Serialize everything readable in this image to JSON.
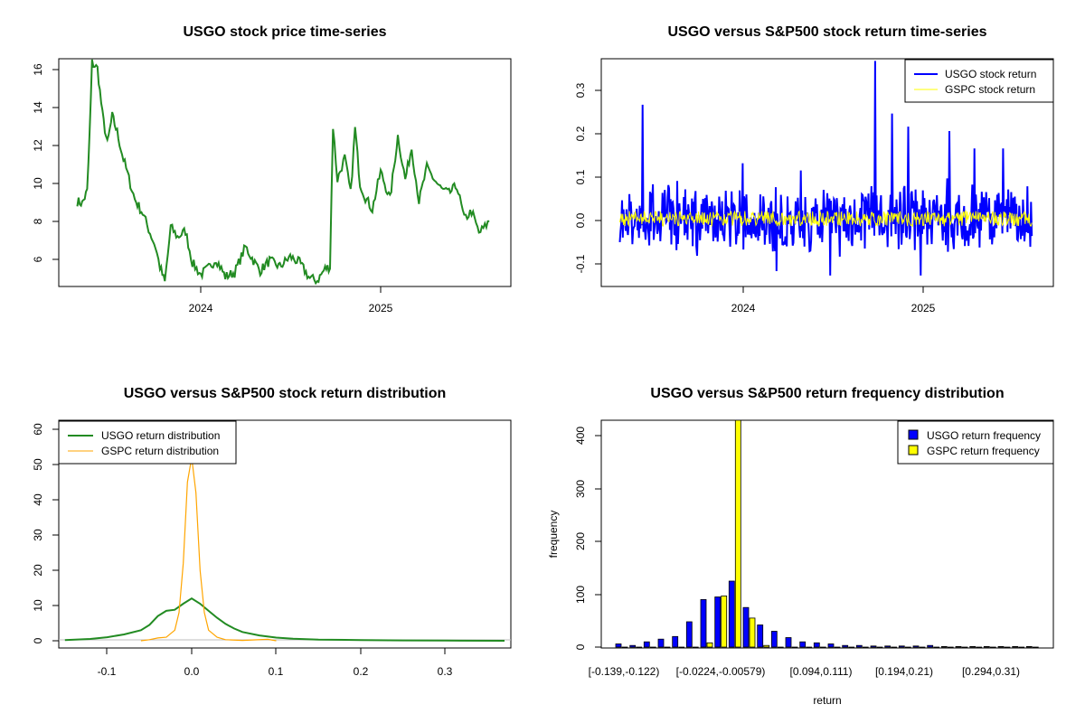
{
  "colors": {
    "usgo_price": "#228b22",
    "usgo_return": "#0000ff",
    "gspc_return": "#ffff00",
    "usgo_density": "#228b22",
    "gspc_density": "#ffa500",
    "usgo_bar": "#0000ff",
    "gspc_bar": "#ffff00"
  },
  "chart_data": [
    {
      "type": "line",
      "title": "USGO stock price time-series",
      "xlabel": "",
      "ylabel": "",
      "x_ticks": [
        "2024",
        "2025"
      ],
      "y_ticks": [
        "6",
        "8",
        "10",
        "12",
        "14",
        "16"
      ],
      "ylim": [
        4.8,
        16.3
      ],
      "grid": false,
      "legend": "none",
      "series": [
        {
          "x": [
            "2023-04-25",
            "2023-05-05",
            "2023-05-15",
            "2023-05-20",
            "2023-05-25",
            "2023-06-05",
            "2023-06-15",
            "2023-06-25",
            "2023-07-05",
            "2023-07-15",
            "2023-07-25",
            "2023-08-05",
            "2023-08-20",
            "2023-09-05",
            "2023-09-20",
            "2023-10-01",
            "2023-10-10",
            "2023-10-20",
            "2023-11-01",
            "2023-11-15",
            "2023-12-01",
            "2023-12-15",
            "2024-01-01",
            "2024-01-20",
            "2024-02-01",
            "2024-02-20",
            "2024-03-10",
            "2024-04-01",
            "2024-04-20",
            "2024-05-01",
            "2024-05-20",
            "2024-06-10",
            "2024-07-01",
            "2024-07-20",
            "2024-08-10",
            "2024-08-25",
            "2024-09-10",
            "2024-09-20",
            "2024-09-26",
            "2024-10-05",
            "2024-10-20",
            "2024-11-01",
            "2024-11-10",
            "2024-11-20",
            "2024-12-01",
            "2024-12-15",
            "2025-01-01",
            "2025-01-20",
            "2025-02-05",
            "2025-02-20",
            "2025-03-05",
            "2025-03-20",
            "2025-04-05",
            "2025-04-20",
            "2025-05-05",
            "2025-05-20",
            "2025-06-05",
            "2025-06-20",
            "2025-07-05",
            "2025-07-20",
            "2025-08-01",
            "2025-08-10"
          ],
          "y": [
            9.1,
            9.0,
            9.6,
            12.5,
            16.1,
            15.8,
            13.5,
            12.0,
            13.4,
            12.6,
            11.5,
            10.5,
            9.2,
            8.5,
            7.5,
            6.8,
            5.8,
            5.0,
            7.8,
            7.3,
            7.6,
            6.0,
            5.4,
            5.8,
            6.2,
            5.3,
            5.5,
            6.8,
            6.0,
            5.6,
            6.1,
            5.8,
            6.3,
            6.0,
            5.2,
            5.1,
            5.7,
            5.8,
            12.9,
            10.2,
            11.3,
            9.5,
            12.8,
            10.0,
            9.3,
            8.7,
            10.6,
            9.2,
            12.4,
            10.2,
            11.8,
            9.1,
            10.8,
            10.2,
            9.7,
            9.5,
            9.9,
            8.2,
            8.6,
            7.5,
            7.8,
            8.1
          ]
        }
      ]
    },
    {
      "type": "line",
      "title": "USGO versus S&P500 stock return time-series",
      "xlabel": "",
      "ylabel": "",
      "x_ticks": [
        "2024",
        "2025"
      ],
      "y_ticks": [
        "-0.1",
        "0.0",
        "0.1",
        "0.2",
        "0.3"
      ],
      "ylim": [
        -0.155,
        0.365
      ],
      "grid": false,
      "legend": "top-right",
      "series": [
        {
          "name": "USGO stock return",
          "note": "daily returns; peaks ≈0.26 (mid-2023), ≈0.36 (Sep 2024), range ≈ -0.14 to 0.36"
        },
        {
          "name": "GSPC stock return",
          "note": "daily returns within ≈ ±0.02"
        }
      ]
    },
    {
      "type": "line",
      "title": "USGO versus S&P500 stock return distribution",
      "xlabel": "",
      "ylabel": "",
      "x_ticks": [
        "-0.1",
        "0.0",
        "0.1",
        "0.2",
        "0.3"
      ],
      "y_ticks": [
        "0",
        "10",
        "20",
        "30",
        "40",
        "50",
        "60"
      ],
      "xlim": [
        -0.155,
        0.375
      ],
      "ylim": [
        -2,
        63
      ],
      "grid": false,
      "legend": "top-left",
      "series": [
        {
          "name": "USGO return distribution",
          "x": [
            -0.15,
            -0.12,
            -0.1,
            -0.08,
            -0.06,
            -0.05,
            -0.04,
            -0.03,
            -0.02,
            -0.01,
            0.0,
            0.01,
            0.02,
            0.03,
            0.04,
            0.05,
            0.06,
            0.08,
            0.1,
            0.12,
            0.15,
            0.2,
            0.25,
            0.3,
            0.37
          ],
          "y": [
            0.2,
            0.5,
            1.0,
            1.8,
            3.0,
            4.5,
            7.0,
            8.5,
            8.8,
            10.5,
            12.0,
            10.5,
            8.5,
            6.5,
            4.8,
            3.5,
            2.5,
            1.5,
            0.9,
            0.6,
            0.3,
            0.2,
            0.1,
            0.05,
            0.0
          ]
        },
        {
          "name": "GSPC return distribution",
          "x": [
            -0.06,
            -0.05,
            -0.04,
            -0.03,
            -0.02,
            -0.015,
            -0.01,
            -0.005,
            0.0,
            0.005,
            0.01,
            0.015,
            0.02,
            0.03,
            0.04,
            0.06,
            0.09,
            0.1
          ],
          "y": [
            0.0,
            0.3,
            0.8,
            1.0,
            3.0,
            8.0,
            22.0,
            45.0,
            52.0,
            42.0,
            20.0,
            8.0,
            3.0,
            1.0,
            0.3,
            0.1,
            0.4,
            0.0
          ]
        }
      ]
    },
    {
      "type": "bar",
      "title": "USGO versus S&P500 return frequency distribution",
      "xlabel": "return",
      "ylabel": "frequency",
      "x_tick_labels": [
        "[-0.139,-0.122)",
        "[-0.0224,-0.00579)",
        "[0.094,0.111)",
        "[0.194,0.21)",
        "[0.294,0.31)"
      ],
      "y_ticks": [
        "0",
        "100",
        "200",
        "300",
        "400"
      ],
      "ylim": [
        0,
        430
      ],
      "grid": false,
      "legend": "top-right",
      "series": [
        {
          "name": "USGO return frequency",
          "values": [
            6,
            3,
            10,
            15,
            20,
            48,
            90,
            95,
            125,
            75,
            42,
            30,
            18,
            10,
            8,
            6,
            3,
            3,
            2,
            2,
            2,
            2,
            3,
            1,
            1,
            1,
            1,
            1,
            1,
            1
          ]
        },
        {
          "name": "GSPC return frequency",
          "values": [
            0,
            0,
            0,
            0,
            0,
            0,
            8,
            97,
            430,
            55,
            3,
            0,
            0,
            0,
            0,
            0,
            0,
            0,
            0,
            0,
            0,
            0,
            0,
            0,
            0,
            0,
            0,
            0,
            0,
            0
          ]
        }
      ]
    }
  ]
}
